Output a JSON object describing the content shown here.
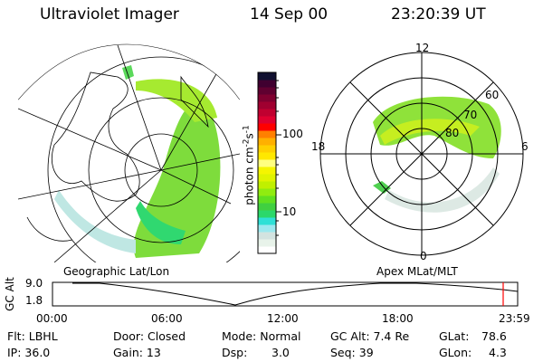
{
  "header": {
    "instrument": "Ultraviolet Imager",
    "date": "14 Sep 00",
    "time": "23:20:39 UT"
  },
  "colorbar": {
    "label": "photon cm",
    "label_sup1": "-2",
    "label_mid": "s",
    "label_sup2": "-1",
    "ticks": [
      "100",
      "10"
    ],
    "colors": [
      "#ffffff",
      "#e8f3ea",
      "#d3e3e0",
      "#9be8ef",
      "#2fe0d6",
      "#2bd86a",
      "#40d040",
      "#60e020",
      "#90ec10",
      "#c0f000",
      "#e0f400",
      "#f5f500",
      "#ffff80",
      "#ffe800",
      "#ffd000",
      "#ffb000",
      "#ff8000",
      "#ff0000",
      "#e00030",
      "#c00030",
      "#a00030",
      "#800030",
      "#600030",
      "#400030",
      "#101030"
    ]
  },
  "left_map": {
    "projection_label": "Geographic Lat/Lon"
  },
  "right_map": {
    "projection_label": "Apex MLat/MLT",
    "mlt_labels": {
      "top": "12",
      "left": "18",
      "right": "6",
      "bottom": "0"
    },
    "lat_labels": [
      "60",
      "70",
      "80"
    ]
  },
  "timeline": {
    "ylabel": "GC Alt",
    "y_ticks": [
      "9.0",
      "1.8"
    ],
    "x_ticks": [
      "00:00",
      "06:00",
      "12:00",
      "18:00",
      "23:59"
    ],
    "marker_color": "#ff0000"
  },
  "status": {
    "filter": "Flt: LBHL",
    "door": "Door: Closed",
    "mode": "Mode: Normal",
    "gc_alt": "GC Alt: 7.4 Re",
    "glat_label": "GLat:",
    "glat": "78.6",
    "ip": "IP: 36.0",
    "gain": "Gain: 13",
    "dsp_label": "Dsp:",
    "dsp": "3.0",
    "seq": "Seq: 39",
    "glon_label": "GLon:",
    "glon": "4.3"
  }
}
